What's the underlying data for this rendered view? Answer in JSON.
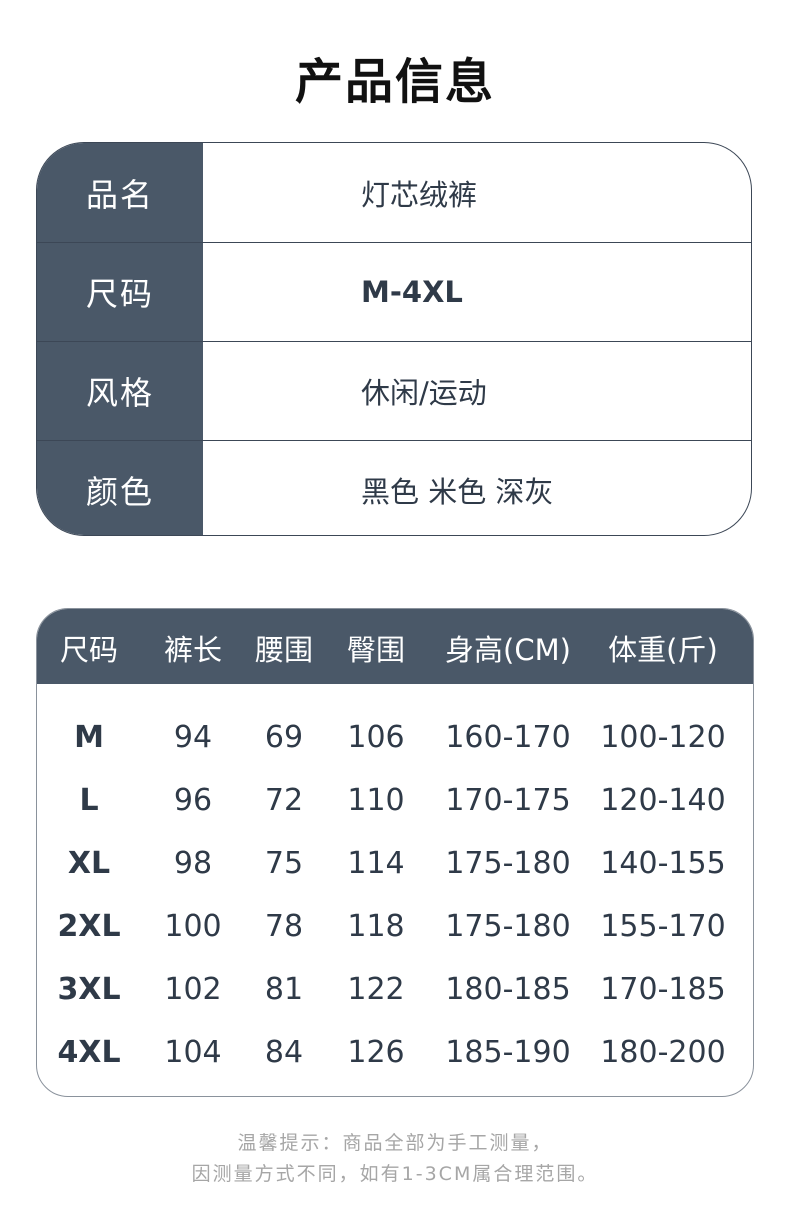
{
  "title": "产品信息",
  "info": [
    {
      "label": "品名",
      "value": "灯芯绒裤"
    },
    {
      "label": "尺码",
      "value": "M-4XL"
    },
    {
      "label": "风格",
      "value": "休闲/运动"
    },
    {
      "label": "颜色",
      "value": "黑色 米色 深灰"
    }
  ],
  "size_table": {
    "headers": [
      "尺码",
      "裤长",
      "腰围",
      "臀围",
      "身高(CM)",
      "体重(斤)"
    ],
    "rows": [
      [
        "M",
        "94",
        "69",
        "106",
        "160-170",
        "100-120"
      ],
      [
        "L",
        "96",
        "72",
        "110",
        "170-175",
        "120-140"
      ],
      [
        "XL",
        "98",
        "75",
        "114",
        "175-180",
        "140-155"
      ],
      [
        "2XL",
        "100",
        "78",
        "118",
        "175-180",
        "155-170"
      ],
      [
        "3XL",
        "102",
        "81",
        "122",
        "180-185",
        "170-185"
      ],
      [
        "4XL",
        "104",
        "84",
        "126",
        "185-190",
        "180-200"
      ]
    ]
  },
  "note": {
    "line1": "温馨提示：商品全部为手工测量，",
    "line2": "因测量方式不同，如有1-3CM属合理范围。"
  },
  "colors": {
    "header_bg": "#4a5868",
    "text": "#2f3a48",
    "note": "#a6a6a6"
  }
}
